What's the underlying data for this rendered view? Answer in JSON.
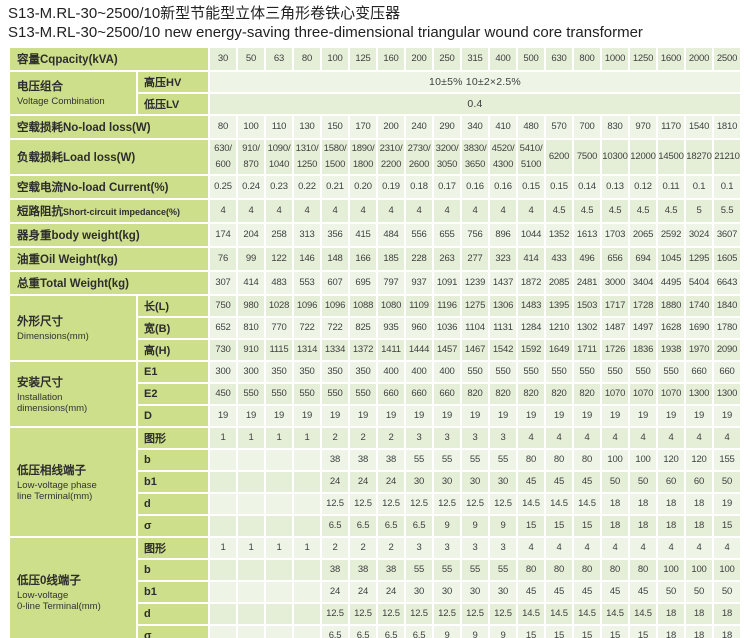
{
  "title": {
    "zh": "S13-M.RL-30~2500/10新型节能型立体三角形卷铁心变压器",
    "en": "S13-M.RL-30~2500/10 new energy-saving three-dimensional triangular wound core transformer"
  },
  "colors": {
    "page-bg": "#ffffff",
    "label-bg": "#cddf8b",
    "row-dark": "#e5efd8",
    "row-light": "#eef5e7",
    "text-dark": "#2e2e2e",
    "text-data": "#3f3f3f"
  },
  "table": {
    "sections": [
      {
        "id": "capacity",
        "label_zh": "容量",
        "label_en": "Cqpacity(kVA)",
        "en_inline": true,
        "rows": [
          {
            "values": [
              "30",
              "50",
              "63",
              "80",
              "100",
              "125",
              "160",
              "200",
              "250",
              "315",
              "400",
              "500",
              "630",
              "800",
              "1000",
              "1250",
              "1600",
              "2000",
              "2500"
            ]
          }
        ]
      },
      {
        "id": "voltage-combination",
        "label_zh": "电压组合",
        "label_en": "Voltage Combination",
        "en_inline": false,
        "rows": [
          {
            "sub": "高压HV",
            "span": "10±5%   10±2×2.5%"
          },
          {
            "sub": "低压LV",
            "span": "0.4"
          }
        ]
      },
      {
        "id": "no-load-loss",
        "label_zh": "空载损耗",
        "label_en": "No-load loss(W)",
        "en_inline": true,
        "rows": [
          {
            "values": [
              "80",
              "100",
              "110",
              "130",
              "150",
              "170",
              "200",
              "240",
              "290",
              "340",
              "410",
              "480",
              "570",
              "700",
              "830",
              "970",
              "1170",
              "1540",
              "1810"
            ]
          }
        ]
      },
      {
        "id": "load-loss",
        "label_zh": "负载损耗",
        "label_en": "Load loss(W)",
        "en_inline": true,
        "rows": [
          {
            "twoline": true,
            "values": [
              "630/\n600",
              "910/\n870",
              "1090/\n1040",
              "1310/\n1250",
              "1580/\n1500",
              "1890/\n1800",
              "2310/\n2200",
              "2730/\n2600",
              "3200/\n3050",
              "3830/\n3650",
              "4520/\n4300",
              "5410/\n5100",
              "6200",
              "7500",
              "10300",
              "12000",
              "14500",
              "18270",
              "21210"
            ]
          }
        ]
      },
      {
        "id": "no-load-current",
        "label_zh": "空载电流",
        "label_en": "No-load Current(%)",
        "en_inline": true,
        "rows": [
          {
            "values": [
              "0.25",
              "0.24",
              "0.23",
              "0.22",
              "0.21",
              "0.20",
              "0.19",
              "0.18",
              "0.17",
              "0.16",
              "0.16",
              "0.15",
              "0.15",
              "0.14",
              "0.13",
              "0.12",
              "0.11",
              "0.1",
              "0.1"
            ]
          }
        ]
      },
      {
        "id": "short-circuit-impedance",
        "label_zh": "短路阻抗",
        "label_en": "Short-circuit impedance(%)",
        "en_inline": true,
        "en_small": true,
        "rows": [
          {
            "values": [
              "4",
              "4",
              "4",
              "4",
              "4",
              "4",
              "4",
              "4",
              "4",
              "4",
              "4",
              "4",
              "4.5",
              "4.5",
              "4.5",
              "4.5",
              "4.5",
              "5",
              "5.5"
            ]
          }
        ]
      },
      {
        "id": "body-weight",
        "label_zh": "器身重",
        "label_en": "body weight(kg)",
        "en_inline": true,
        "rows": [
          {
            "values": [
              "174",
              "204",
              "258",
              "313",
              "356",
              "415",
              "484",
              "556",
              "655",
              "756",
              "896",
              "1044",
              "1352",
              "1613",
              "1703",
              "2065",
              "2592",
              "3024",
              "3607"
            ]
          }
        ]
      },
      {
        "id": "oil-weight",
        "label_zh": "油重",
        "label_en": "Oil Weight(kg)",
        "en_inline": true,
        "rows": [
          {
            "values": [
              "76",
              "99",
              "122",
              "146",
              "148",
              "166",
              "185",
              "228",
              "263",
              "277",
              "323",
              "414",
              "433",
              "496",
              "656",
              "694",
              "1045",
              "1295",
              "1605"
            ]
          }
        ]
      },
      {
        "id": "total-weight",
        "label_zh": "总重",
        "label_en": "Total Weight(kg)",
        "en_inline": true,
        "rows": [
          {
            "values": [
              "307",
              "414",
              "483",
              "553",
              "607",
              "695",
              "797",
              "937",
              "1091",
              "1239",
              "1437",
              "1872",
              "2085",
              "2481",
              "3000",
              "3404",
              "4495",
              "5404",
              "6643"
            ]
          }
        ]
      },
      {
        "id": "dimensions",
        "label_zh": "外形尺寸",
        "label_en": "Dimensions(mm)",
        "en_inline": false,
        "rows": [
          {
            "sub": "长(L)",
            "values": [
              "750",
              "980",
              "1028",
              "1096",
              "1096",
              "1088",
              "1080",
              "1109",
              "1196",
              "1275",
              "1306",
              "1483",
              "1395",
              "1503",
              "1717",
              "1728",
              "1880",
              "1740",
              "1840"
            ]
          },
          {
            "sub": "宽(B)",
            "values": [
              "652",
              "810",
              "770",
              "722",
              "722",
              "825",
              "935",
              "960",
              "1036",
              "1104",
              "1131",
              "1284",
              "1210",
              "1302",
              "1487",
              "1497",
              "1628",
              "1690",
              "1780"
            ]
          },
          {
            "sub": "高(H)",
            "values": [
              "730",
              "910",
              "1115",
              "1314",
              "1334",
              "1372",
              "1411",
              "1444",
              "1457",
              "1467",
              "1542",
              "1592",
              "1649",
              "1711",
              "1726",
              "1836",
              "1938",
              "1970",
              "2090"
            ]
          }
        ]
      },
      {
        "id": "installation-dimensions",
        "label_zh": "安装尺寸",
        "label_en": "Installation\ndimensions(mm)",
        "en_inline": false,
        "rows": [
          {
            "sub": "E1",
            "values": [
              "300",
              "300",
              "350",
              "350",
              "350",
              "350",
              "400",
              "400",
              "400",
              "550",
              "550",
              "550",
              "550",
              "550",
              "550",
              "550",
              "550",
              "660",
              "660"
            ]
          },
          {
            "sub": "E2",
            "values": [
              "450",
              "550",
              "550",
              "550",
              "550",
              "550",
              "660",
              "660",
              "660",
              "820",
              "820",
              "820",
              "820",
              "820",
              "1070",
              "1070",
              "1070",
              "1300",
              "1300"
            ]
          },
          {
            "sub": "D",
            "values": [
              "19",
              "19",
              "19",
              "19",
              "19",
              "19",
              "19",
              "19",
              "19",
              "19",
              "19",
              "19",
              "19",
              "19",
              "19",
              "19",
              "19",
              "19",
              "19"
            ]
          }
        ]
      },
      {
        "id": "lv-phase-terminal",
        "label_zh": "低压相线端子",
        "label_en": "Low-voltage phase\nline Terminal(mm)",
        "en_inline": false,
        "rows": [
          {
            "sub": "图形",
            "values": [
              "1",
              "1",
              "1",
              "1",
              "2",
              "2",
              "2",
              "3",
              "3",
              "3",
              "3",
              "4",
              "4",
              "4",
              "4",
              "4",
              "4",
              "4",
              "4"
            ]
          },
          {
            "sub": "b",
            "values": [
              "",
              "",
              "",
              "",
              "38",
              "38",
              "38",
              "55",
              "55",
              "55",
              "55",
              "80",
              "80",
              "80",
              "100",
              "100",
              "120",
              "120",
              "155"
            ]
          },
          {
            "sub": "b1",
            "values": [
              "",
              "",
              "",
              "",
              "24",
              "24",
              "24",
              "30",
              "30",
              "30",
              "30",
              "45",
              "45",
              "45",
              "50",
              "50",
              "60",
              "60",
              "50"
            ]
          },
          {
            "sub": "d",
            "values": [
              "",
              "",
              "",
              "",
              "12.5",
              "12.5",
              "12.5",
              "12.5",
              "12.5",
              "12.5",
              "12.5",
              "14.5",
              "14.5",
              "14.5",
              "18",
              "18",
              "18",
              "18",
              "19"
            ]
          },
          {
            "sub": "σ",
            "values": [
              "",
              "",
              "",
              "",
              "6.5",
              "6.5",
              "6.5",
              "6.5",
              "9",
              "9",
              "9",
              "15",
              "15",
              "15",
              "18",
              "18",
              "18",
              "18",
              "15"
            ]
          }
        ]
      },
      {
        "id": "lv-zero-terminal",
        "label_zh": "低压0线端子",
        "label_en": "Low-voltage\n0-line Terminal(mm)",
        "en_inline": false,
        "rows": [
          {
            "sub": "图形",
            "values": [
              "1",
              "1",
              "1",
              "1",
              "2",
              "2",
              "2",
              "3",
              "3",
              "3",
              "3",
              "4",
              "4",
              "4",
              "4",
              "4",
              "4",
              "4",
              "4"
            ]
          },
          {
            "sub": "b",
            "values": [
              "",
              "",
              "",
              "",
              "38",
              "38",
              "38",
              "55",
              "55",
              "55",
              "55",
              "80",
              "80",
              "80",
              "80",
              "80",
              "100",
              "100",
              "100"
            ]
          },
          {
            "sub": "b1",
            "values": [
              "",
              "",
              "",
              "",
              "24",
              "24",
              "24",
              "30",
              "30",
              "30",
              "30",
              "45",
              "45",
              "45",
              "45",
              "45",
              "50",
              "50",
              "50"
            ]
          },
          {
            "sub": "d",
            "values": [
              "",
              "",
              "",
              "",
              "12.5",
              "12.5",
              "12.5",
              "12.5",
              "12.5",
              "12.5",
              "12.5",
              "14.5",
              "14.5",
              "14.5",
              "14.5",
              "14.5",
              "18",
              "18",
              "18"
            ]
          },
          {
            "sub": "σ",
            "values": [
              "",
              "",
              "",
              "",
              "6.5",
              "6.5",
              "6.5",
              "6.5",
              "9",
              "9",
              "9",
              "15",
              "15",
              "15",
              "15",
              "15",
              "18",
              "18",
              "18"
            ]
          }
        ]
      }
    ]
  }
}
